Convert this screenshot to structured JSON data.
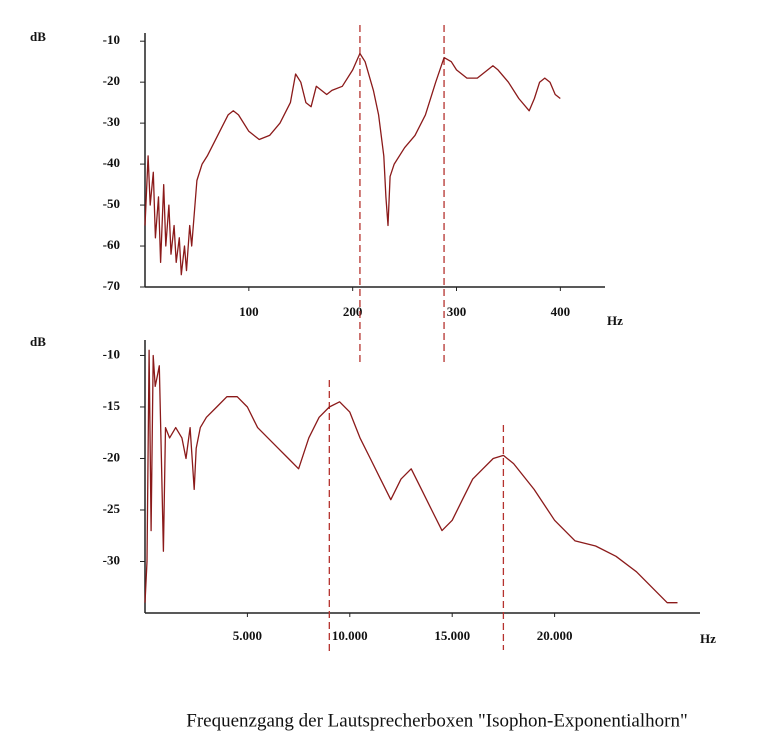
{
  "chart_data": [
    {
      "type": "line",
      "y_label": "dB",
      "x_label": "Hz",
      "x": [
        0,
        3,
        5,
        8,
        10,
        13,
        15,
        18,
        20,
        23,
        25,
        28,
        30,
        33,
        35,
        38,
        40,
        43,
        45,
        50,
        55,
        60,
        70,
        80,
        85,
        90,
        100,
        110,
        120,
        130,
        140,
        145,
        150,
        155,
        160,
        165,
        170,
        175,
        180,
        190,
        200,
        207,
        212,
        220,
        225,
        230,
        232,
        234,
        236,
        240,
        250,
        260,
        270,
        280,
        288,
        295,
        300,
        310,
        320,
        330,
        335,
        340,
        350,
        360,
        370,
        375,
        380,
        385,
        390,
        395,
        400
      ],
      "series": [
        {
          "color": "#8b1a1a",
          "values": [
            -55,
            -38,
            -50,
            -42,
            -58,
            -48,
            -64,
            -45,
            -60,
            -50,
            -62,
            -55,
            -64,
            -58,
            -67,
            -60,
            -66,
            -55,
            -60,
            -44,
            -40,
            -38,
            -33,
            -28,
            -27,
            -28,
            -32,
            -34,
            -33,
            -30,
            -25,
            -18,
            -20,
            -25,
            -26,
            -21,
            -22,
            -23,
            -22,
            -21,
            -17,
            -13,
            -15,
            -22,
            -28,
            -38,
            -48,
            -55,
            -43,
            -40,
            -36,
            -33,
            -28,
            -20,
            -14,
            -15,
            -17,
            -19,
            -19,
            -17,
            -16,
            -17,
            -20,
            -24,
            -27,
            -24,
            -20,
            -19,
            -20,
            -23,
            -24
          ]
        }
      ],
      "xlim": [
        0,
        443
      ],
      "ylim": [
        -70,
        -8
      ],
      "xticks": [
        100,
        200,
        300,
        400
      ],
      "yticks": [
        -10,
        -20,
        -30,
        -40,
        -50,
        -60,
        -70
      ],
      "vlines": [
        207,
        288
      ],
      "vline_color": "#b5322e"
    },
    {
      "type": "line",
      "y_label": "dB",
      "x_label": "Hz",
      "x": [
        0,
        100,
        200,
        300,
        400,
        500,
        600,
        700,
        800,
        900,
        1000,
        1200,
        1500,
        1800,
        2000,
        2200,
        2400,
        2500,
        2700,
        3000,
        3500,
        4000,
        4500,
        5000,
        5500,
        6000,
        6500,
        7000,
        7500,
        8000,
        8500,
        9000,
        9500,
        10000,
        10500,
        11000,
        11500,
        12000,
        12500,
        13000,
        13500,
        14000,
        14500,
        15000,
        15500,
        16000,
        16500,
        17000,
        17500,
        18000,
        19000,
        20000,
        21000,
        22000,
        23000,
        24000,
        25000,
        25500,
        26000
      ],
      "series": [
        {
          "color": "#8b1a1a",
          "values": [
            -34,
            -30,
            -9.5,
            -27,
            -10,
            -13,
            -12,
            -11,
            -20,
            -29,
            -17,
            -18,
            -17,
            -18,
            -20,
            -17,
            -23,
            -19,
            -17,
            -16,
            -15,
            -14,
            -14,
            -15,
            -17,
            -18,
            -19,
            -20,
            -21,
            -18,
            -16,
            -15,
            -14.5,
            -15.5,
            -18,
            -20,
            -22,
            -24,
            -22,
            -21,
            -23,
            -25,
            -27,
            -26,
            -24,
            -22,
            -21,
            -20,
            -19.7,
            -20.5,
            -23,
            -26,
            -28,
            -28.5,
            -29.5,
            -31,
            -33,
            -34,
            -34
          ]
        }
      ],
      "xlim": [
        0,
        27100
      ],
      "ylim": [
        -35,
        -8.5
      ],
      "xticks": [
        {
          "value": 5000,
          "label": "5.000"
        },
        {
          "value": 10000,
          "label": "10.000"
        },
        {
          "value": 15000,
          "label": "15.000"
        },
        {
          "value": 20000,
          "label": "20.000"
        }
      ],
      "yticks": [
        -10,
        -15,
        -20,
        -25,
        -30
      ],
      "vlines": [
        9000,
        17500
      ],
      "vline_color": "#b5322e"
    }
  ],
  "caption": "Frequenzgang der Lautsprecherboxen \"Isophon-Exponentialhorn\""
}
